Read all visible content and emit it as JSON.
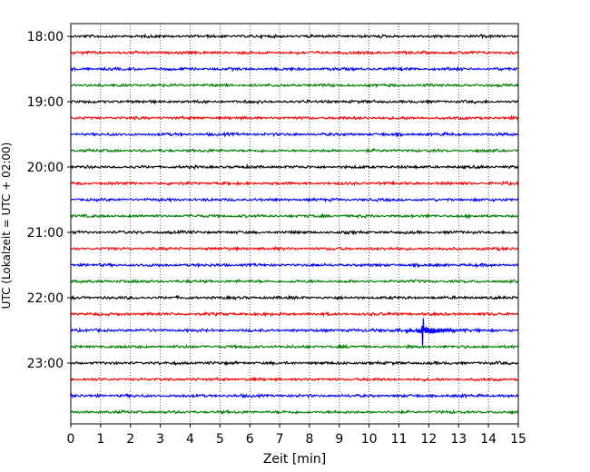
{
  "chart_data": {
    "type": "line",
    "title": "",
    "xlabel": "Zeit  [min]",
    "ylabel": "UTC (Lokalzeit = UTC + 02:00)",
    "xlim": [
      0,
      15
    ],
    "x_ticks": [
      0,
      1,
      2,
      3,
      4,
      5,
      6,
      7,
      8,
      9,
      10,
      11,
      12,
      13,
      14,
      15
    ],
    "y_ticks": [
      "18:00",
      "19:00",
      "20:00",
      "21:00",
      "22:00",
      "23:00"
    ],
    "trace_interval_minutes": 15,
    "trace_colors": [
      "#000000",
      "#ff0000",
      "#0000ff",
      "#008000"
    ],
    "grid": "vertical dotted",
    "traces": [
      {
        "start": "18:00",
        "color": "#000000"
      },
      {
        "start": "18:15",
        "color": "#ff0000"
      },
      {
        "start": "18:30",
        "color": "#0000ff"
      },
      {
        "start": "18:45",
        "color": "#008000"
      },
      {
        "start": "19:00",
        "color": "#000000"
      },
      {
        "start": "19:15",
        "color": "#ff0000"
      },
      {
        "start": "19:30",
        "color": "#0000ff"
      },
      {
        "start": "19:45",
        "color": "#008000"
      },
      {
        "start": "20:00",
        "color": "#000000"
      },
      {
        "start": "20:15",
        "color": "#ff0000"
      },
      {
        "start": "20:30",
        "color": "#0000ff"
      },
      {
        "start": "20:45",
        "color": "#008000"
      },
      {
        "start": "21:00",
        "color": "#000000"
      },
      {
        "start": "21:15",
        "color": "#ff0000"
      },
      {
        "start": "21:30",
        "color": "#0000ff"
      },
      {
        "start": "21:45",
        "color": "#008000"
      },
      {
        "start": "22:00",
        "color": "#000000"
      },
      {
        "start": "22:15",
        "color": "#ff0000"
      },
      {
        "start": "22:30",
        "color": "#0000ff",
        "events": [
          {
            "minute": 11.8,
            "description": "large spike"
          }
        ]
      },
      {
        "start": "22:45",
        "color": "#008000"
      },
      {
        "start": "23:00",
        "color": "#000000"
      },
      {
        "start": "23:15",
        "color": "#ff0000"
      },
      {
        "start": "23:30",
        "color": "#0000ff"
      },
      {
        "start": "23:45",
        "color": "#008000"
      }
    ]
  }
}
